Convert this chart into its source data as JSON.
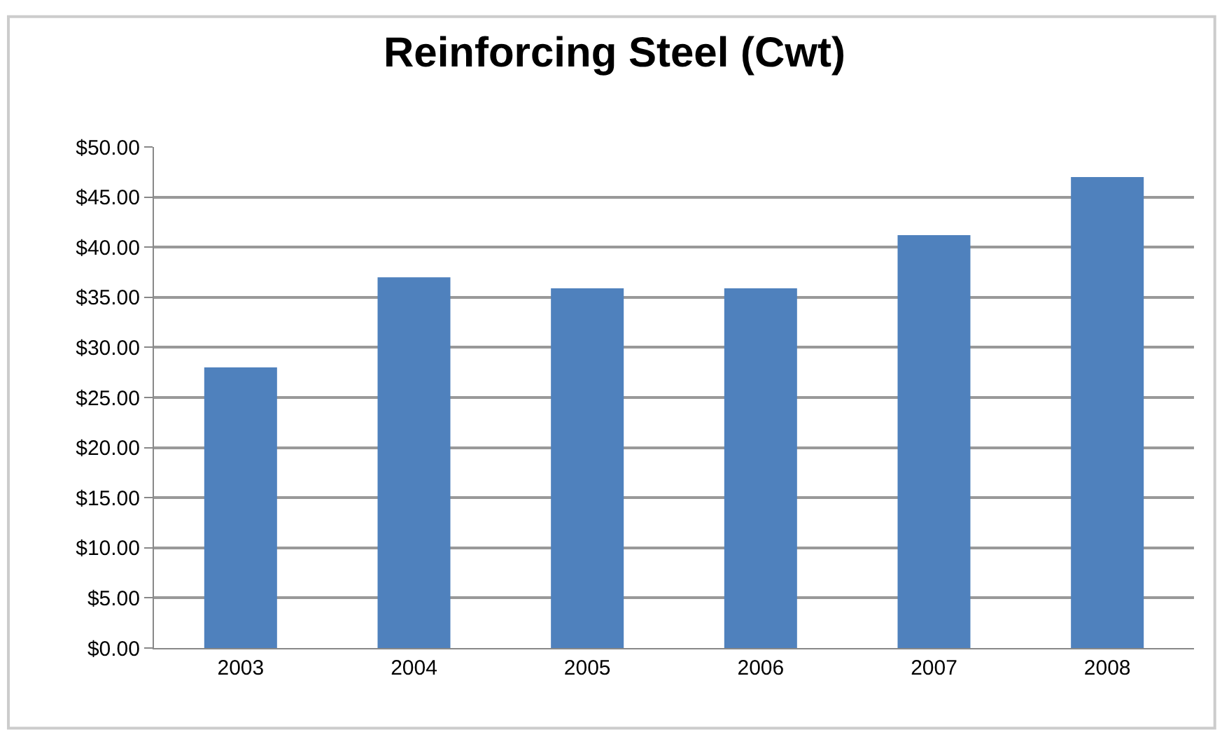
{
  "chart_data": {
    "type": "bar",
    "title": "Reinforcing Steel (Cwt)",
    "categories": [
      "2003",
      "2004",
      "2005",
      "2006",
      "2007",
      "2008"
    ],
    "values": [
      28.0,
      37.0,
      35.9,
      35.9,
      41.2,
      47.0
    ],
    "color": "#4f81bd",
    "ylim": [
      0,
      50
    ],
    "yticks": [
      {
        "value": 0,
        "label": "$0.00"
      },
      {
        "value": 5,
        "label": "$5.00"
      },
      {
        "value": 10,
        "label": "$10.00"
      },
      {
        "value": 15,
        "label": "$15.00"
      },
      {
        "value": 20,
        "label": "$20.00"
      },
      {
        "value": 25,
        "label": "$25.00"
      },
      {
        "value": 30,
        "label": "$30.00"
      },
      {
        "value": 35,
        "label": "$35.00"
      },
      {
        "value": 40,
        "label": "$40.00"
      },
      {
        "value": 45,
        "label": "$45.00"
      },
      {
        "value": 50,
        "label": "$50.00"
      }
    ],
    "grid": "y",
    "legend": false
  }
}
